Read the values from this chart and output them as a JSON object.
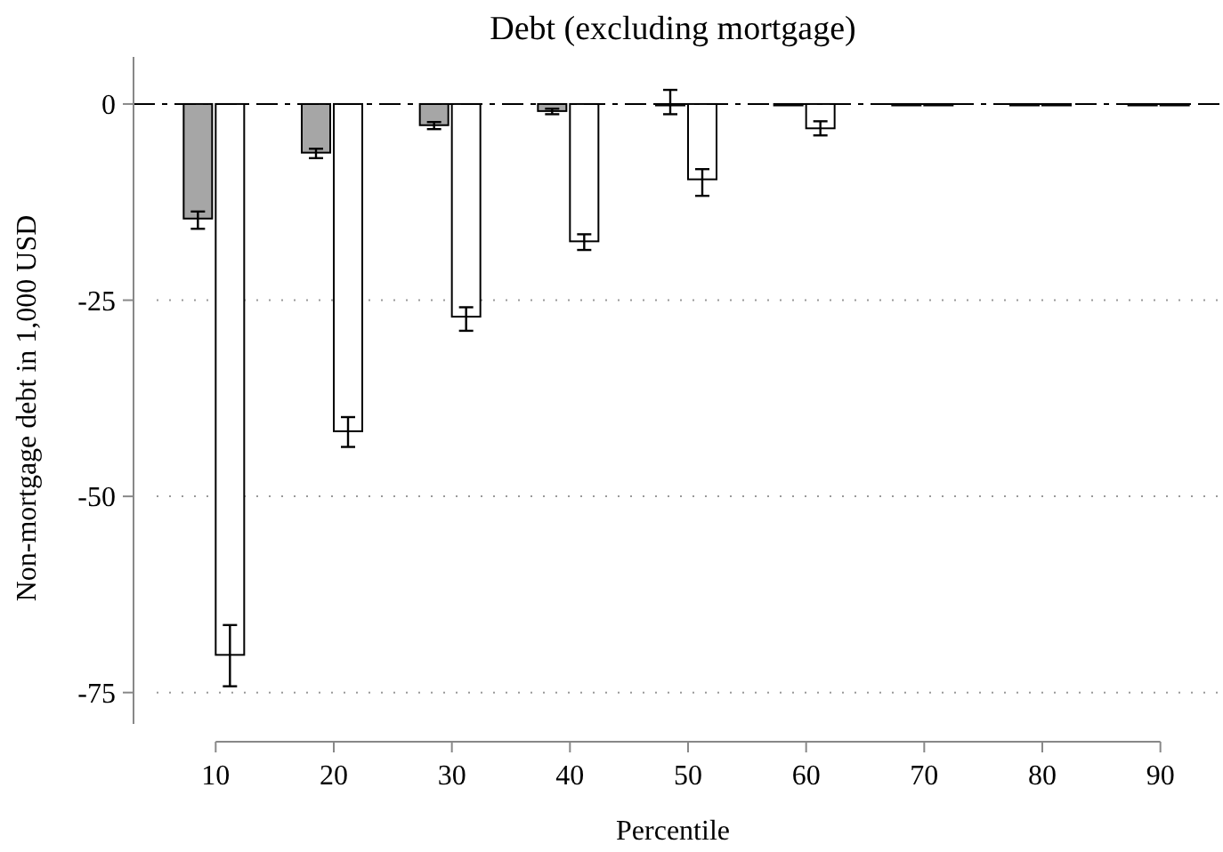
{
  "chart_data": {
    "type": "bar",
    "title": "Debt (excluding mortgage)",
    "xlabel": "Percentile",
    "ylabel": "Non-mortgage debt in 1,000 USD",
    "categories": [
      "10",
      "20",
      "30",
      "40",
      "50",
      "60",
      "70",
      "80",
      "90"
    ],
    "series": [
      {
        "color": "#a6a6a6",
        "values": [
          -14.6,
          -6.2,
          -2.7,
          -0.9,
          0,
          0,
          0,
          0,
          0
        ],
        "errors": [
          [
            -15.9,
            -13.7
          ],
          [
            -6.9,
            -5.7
          ],
          [
            -3.2,
            -2.3
          ],
          [
            -1.3,
            -0.6
          ],
          [
            -1.3,
            1.8
          ],
          null,
          null,
          null,
          null
        ]
      },
      {
        "color": "#ffffff",
        "values": [
          -70.2,
          -41.7,
          -27.1,
          -17.5,
          -9.6,
          -3.1,
          0,
          0,
          0
        ],
        "errors": [
          [
            -74.2,
            -66.4
          ],
          [
            -43.7,
            -39.9
          ],
          [
            -28.9,
            -25.9
          ],
          [
            -18.6,
            -16.6
          ],
          [
            -11.7,
            -8.3
          ],
          [
            -4,
            -2.2
          ],
          null,
          null,
          null
        ]
      }
    ],
    "ylim": [
      -79,
      6
    ],
    "yticks": [
      0,
      -25,
      -50,
      -75
    ],
    "grid": "y",
    "ref_lines": [
      {
        "axis": "y",
        "value": 0,
        "line_style": "dashed",
        "color": "#000000"
      }
    ]
  }
}
